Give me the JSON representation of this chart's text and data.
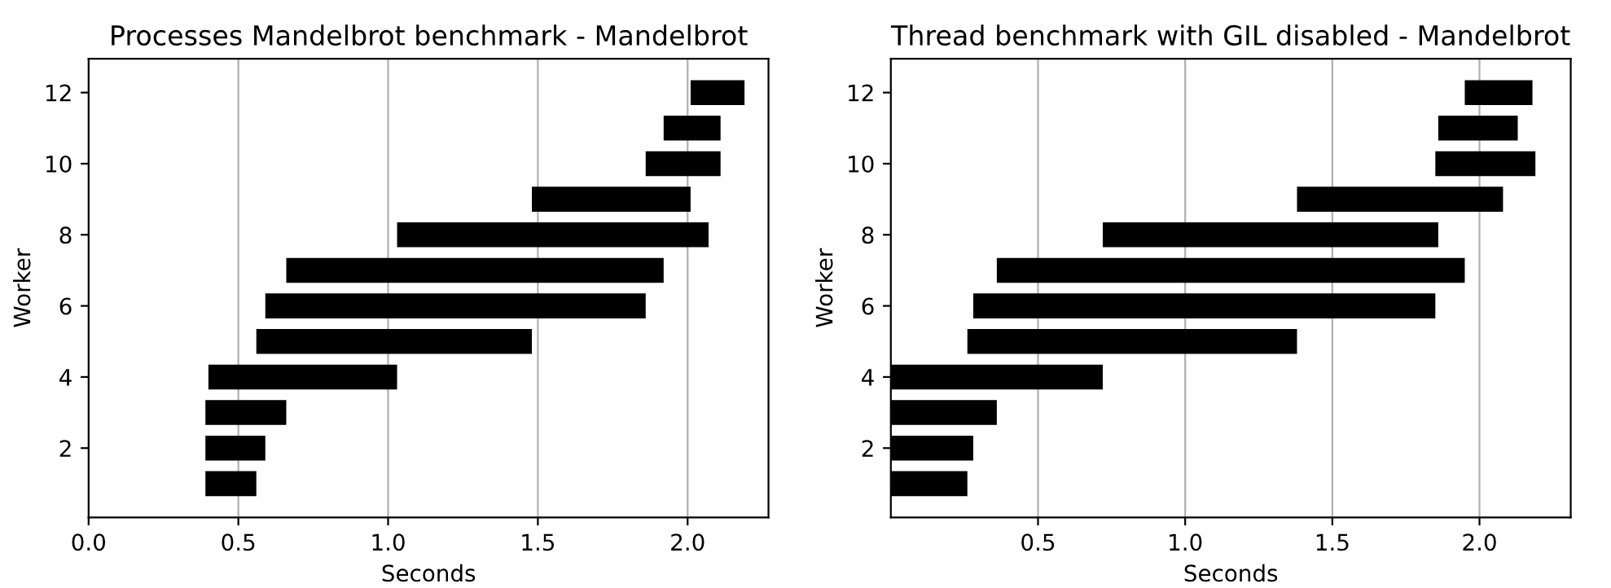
{
  "chart_data": [
    {
      "type": "bar",
      "orientation": "horizontal",
      "title": "Processes Mandelbrot benchmark - Mandelbrot",
      "xlabel": "Seconds",
      "ylabel": "Worker",
      "x": [
        1,
        2,
        3,
        4,
        5,
        6,
        7,
        8,
        9,
        10,
        11,
        12
      ],
      "base": [
        0.39,
        0.39,
        0.39,
        0.4,
        0.56,
        0.59,
        0.66,
        1.03,
        1.48,
        1.86,
        1.92,
        2.01
      ],
      "values": [
        0.17,
        0.2,
        0.27,
        0.63,
        0.92,
        1.27,
        1.26,
        1.04,
        0.53,
        0.25,
        0.19,
        0.18
      ],
      "color": "#000000",
      "xlim": [
        0,
        2.27
      ],
      "xticks": [
        {
          "value": 0,
          "label": "0.0"
        },
        {
          "value": 0.5,
          "label": "0.5"
        },
        {
          "value": 1,
          "label": "1.0"
        },
        {
          "value": 1.5,
          "label": "1.5"
        },
        {
          "value": 2,
          "label": "2.0"
        }
      ],
      "ylim": [
        0.05,
        12.95
      ],
      "yticks": [
        2,
        4,
        6,
        8,
        10,
        12
      ],
      "grid": "x"
    },
    {
      "type": "bar",
      "orientation": "horizontal",
      "title": "Thread benchmark with GIL disabled - Mandelbrot",
      "xlabel": "Seconds",
      "ylabel": "Worker",
      "x": [
        1,
        2,
        3,
        4,
        5,
        6,
        7,
        8,
        9,
        10,
        11,
        12
      ],
      "base": [
        0.0,
        0.0,
        0.0,
        0.0,
        0.26,
        0.28,
        0.36,
        0.72,
        1.38,
        1.85,
        1.86,
        1.95
      ],
      "values": [
        0.26,
        0.28,
        0.36,
        0.72,
        1.12,
        1.57,
        1.59,
        1.14,
        0.7,
        0.34,
        0.27,
        0.23
      ],
      "color": "#000000",
      "xlim": [
        0,
        2.31
      ],
      "xticks": [
        {
          "value": 0.5,
          "label": "0.5"
        },
        {
          "value": 1,
          "label": "1.0"
        },
        {
          "value": 1.5,
          "label": "1.5"
        },
        {
          "value": 2,
          "label": "2.0"
        }
      ],
      "ylim": [
        0.05,
        12.95
      ],
      "yticks": [
        2,
        4,
        6,
        8,
        10,
        12
      ],
      "grid": "x"
    }
  ]
}
